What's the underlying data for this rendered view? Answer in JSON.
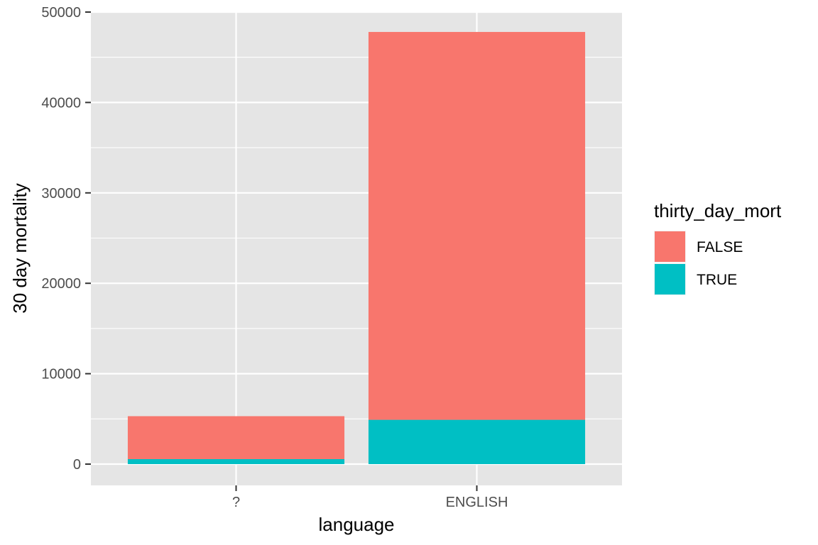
{
  "chart_data": {
    "type": "bar",
    "stacked": true,
    "categories": [
      "?",
      "ENGLISH"
    ],
    "series": [
      {
        "name": "FALSE",
        "color": "#F8766D",
        "values": [
          4750,
          42900
        ]
      },
      {
        "name": "TRUE",
        "color": "#00BFC4",
        "values": [
          550,
          4900
        ]
      }
    ],
    "xlabel": "language",
    "ylabel": "30 day mortality",
    "ylim": [
      0,
      50000
    ],
    "yticks": [
      0,
      10000,
      20000,
      30000,
      40000,
      50000
    ],
    "grid": true,
    "legend": {
      "title": "thirty_day_mort",
      "position": "right"
    },
    "colors": {
      "panel_background": "#E5E5E5",
      "grid_line": "#FFFFFF",
      "bar_false": "#F8766D",
      "bar_true": "#00BFC4"
    }
  }
}
